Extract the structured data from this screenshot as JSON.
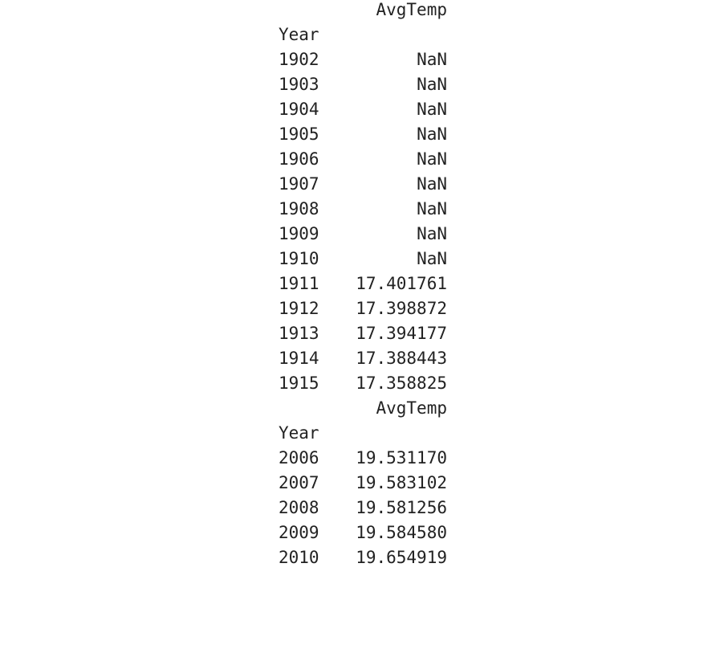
{
  "tables": [
    {
      "column_header": "AvgTemp",
      "index_name": "Year",
      "rows": [
        {
          "year": "1902",
          "avg_temp": "NaN"
        },
        {
          "year": "1903",
          "avg_temp": "NaN"
        },
        {
          "year": "1904",
          "avg_temp": "NaN"
        },
        {
          "year": "1905",
          "avg_temp": "NaN"
        },
        {
          "year": "1906",
          "avg_temp": "NaN"
        },
        {
          "year": "1907",
          "avg_temp": "NaN"
        },
        {
          "year": "1908",
          "avg_temp": "NaN"
        },
        {
          "year": "1909",
          "avg_temp": "NaN"
        },
        {
          "year": "1910",
          "avg_temp": "NaN"
        },
        {
          "year": "1911",
          "avg_temp": "17.401761"
        },
        {
          "year": "1912",
          "avg_temp": "17.398872"
        },
        {
          "year": "1913",
          "avg_temp": "17.394177"
        },
        {
          "year": "1914",
          "avg_temp": "17.388443"
        },
        {
          "year": "1915",
          "avg_temp": "17.358825"
        }
      ]
    },
    {
      "column_header": "AvgTemp",
      "index_name": "Year",
      "rows": [
        {
          "year": "2006",
          "avg_temp": "19.531170"
        },
        {
          "year": "2007",
          "avg_temp": "19.583102"
        },
        {
          "year": "2008",
          "avg_temp": "19.581256"
        },
        {
          "year": "2009",
          "avg_temp": "19.584580"
        },
        {
          "year": "2010",
          "avg_temp": "19.654919"
        }
      ]
    }
  ]
}
